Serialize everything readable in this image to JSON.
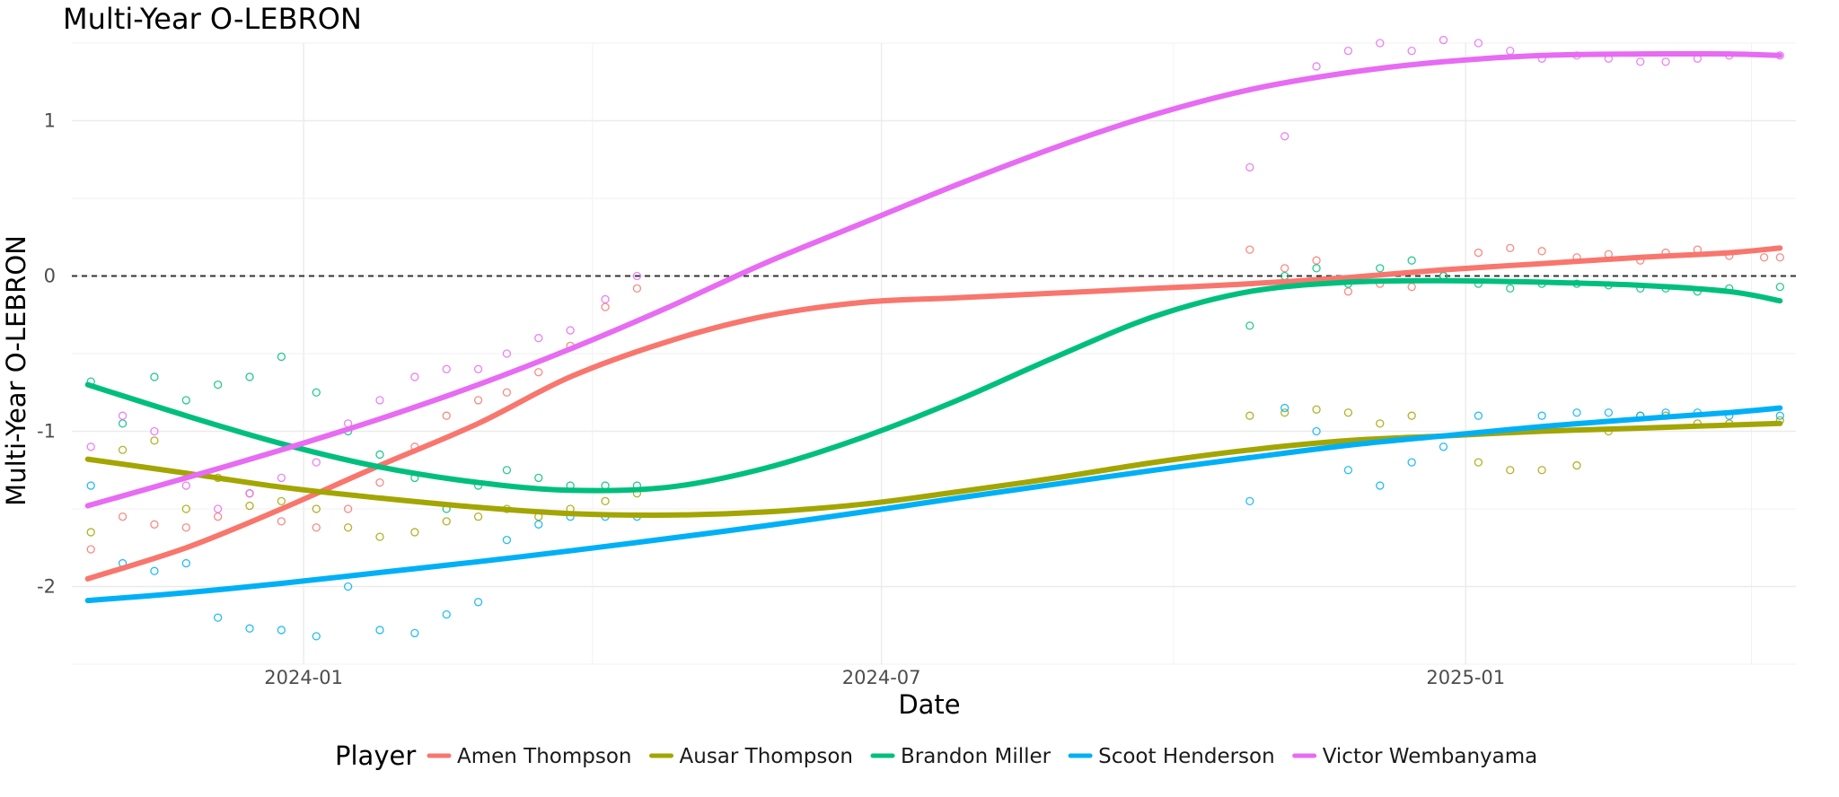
{
  "chart_data": {
    "type": "line",
    "title": "Multi-Year O-LEBRON",
    "xlabel": "Date",
    "ylabel": "Multi-Year O-LEBRON",
    "xlim": [
      "2023-10-20",
      "2025-04-15"
    ],
    "ylim": [
      -2.5,
      1.5
    ],
    "x_ticks": [
      "2024-01-01",
      "2024-07-01",
      "2025-01-01"
    ],
    "x_tick_labels": [
      "2024-01",
      "2024-07",
      "2025-01"
    ],
    "y_ticks": [
      -2,
      -1,
      0,
      1
    ],
    "y_tick_labels": [
      "-2",
      "-1",
      "0",
      "1"
    ],
    "reference_line": {
      "y": 0,
      "style": "dashed"
    },
    "grid": true,
    "legend": {
      "title": "Player",
      "placement": "bottom"
    },
    "series": [
      {
        "name": "Amen Thompson",
        "color": "#F8766D",
        "smooth": [
          [
            "2023-10-25",
            -1.95
          ],
          [
            "2023-11-25",
            -1.75
          ],
          [
            "2023-12-25",
            -1.5
          ],
          [
            "2024-01-25",
            -1.22
          ],
          [
            "2024-02-25",
            -0.95
          ],
          [
            "2024-03-25",
            -0.65
          ],
          [
            "2024-04-25",
            -0.42
          ],
          [
            "2024-05-25",
            -0.26
          ],
          [
            "2024-06-25",
            -0.17
          ],
          [
            "2024-07-25",
            -0.14
          ],
          [
            "2024-08-25",
            -0.11
          ],
          [
            "2024-09-25",
            -0.08
          ],
          [
            "2024-10-25",
            -0.05
          ],
          [
            "2024-11-25",
            -0.01
          ],
          [
            "2024-12-25",
            0.04
          ],
          [
            "2025-01-25",
            0.08
          ],
          [
            "2025-02-25",
            0.12
          ],
          [
            "2025-03-25",
            0.15
          ],
          [
            "2025-04-10",
            0.18
          ]
        ],
        "points": [
          [
            "2023-10-26",
            -1.76
          ],
          [
            "2023-11-05",
            -1.55
          ],
          [
            "2023-11-15",
            -1.6
          ],
          [
            "2023-11-25",
            -1.62
          ],
          [
            "2023-12-05",
            -1.55
          ],
          [
            "2023-12-15",
            -1.4
          ],
          [
            "2023-12-25",
            -1.58
          ],
          [
            "2024-01-05",
            -1.62
          ],
          [
            "2024-01-15",
            -1.5
          ],
          [
            "2024-01-25",
            -1.33
          ],
          [
            "2024-02-05",
            -1.1
          ],
          [
            "2024-02-15",
            -0.9
          ],
          [
            "2024-02-25",
            -0.8
          ],
          [
            "2024-03-05",
            -0.75
          ],
          [
            "2024-03-15",
            -0.62
          ],
          [
            "2024-03-25",
            -0.45
          ],
          [
            "2024-04-05",
            -0.2
          ],
          [
            "2024-04-15",
            -0.08
          ],
          [
            "2024-10-25",
            0.17
          ],
          [
            "2024-11-05",
            0.05
          ],
          [
            "2024-11-15",
            0.1
          ],
          [
            "2024-11-25",
            -0.1
          ],
          [
            "2024-12-05",
            -0.05
          ],
          [
            "2024-12-15",
            -0.07
          ],
          [
            "2024-12-25",
            0.0
          ],
          [
            "2025-01-05",
            0.15
          ],
          [
            "2025-01-15",
            0.18
          ],
          [
            "2025-01-25",
            0.16
          ],
          [
            "2025-02-05",
            0.12
          ],
          [
            "2025-02-15",
            0.14
          ],
          [
            "2025-02-25",
            0.1
          ],
          [
            "2025-03-05",
            0.15
          ],
          [
            "2025-03-15",
            0.17
          ],
          [
            "2025-03-25",
            0.13
          ],
          [
            "2025-04-05",
            0.12
          ],
          [
            "2025-04-10",
            0.12
          ]
        ]
      },
      {
        "name": "Ausar Thompson",
        "color": "#A3A500",
        "smooth": [
          [
            "2023-10-25",
            -1.18
          ],
          [
            "2023-11-25",
            -1.27
          ],
          [
            "2023-12-25",
            -1.36
          ],
          [
            "2024-01-25",
            -1.43
          ],
          [
            "2024-02-25",
            -1.49
          ],
          [
            "2024-03-25",
            -1.53
          ],
          [
            "2024-04-25",
            -1.54
          ],
          [
            "2024-05-25",
            -1.52
          ],
          [
            "2024-06-25",
            -1.47
          ],
          [
            "2024-07-25",
            -1.39
          ],
          [
            "2024-08-25",
            -1.3
          ],
          [
            "2024-09-25",
            -1.2
          ],
          [
            "2024-10-25",
            -1.12
          ],
          [
            "2024-11-25",
            -1.06
          ],
          [
            "2024-12-25",
            -1.03
          ],
          [
            "2025-01-25",
            -1.0
          ],
          [
            "2025-02-25",
            -0.98
          ],
          [
            "2025-03-25",
            -0.96
          ],
          [
            "2025-04-10",
            -0.95
          ]
        ],
        "points": [
          [
            "2023-10-26",
            -1.65
          ],
          [
            "2023-11-05",
            -1.12
          ],
          [
            "2023-11-15",
            -1.06
          ],
          [
            "2023-11-25",
            -1.5
          ],
          [
            "2023-12-05",
            -1.3
          ],
          [
            "2023-12-15",
            -1.48
          ],
          [
            "2023-12-25",
            -1.45
          ],
          [
            "2024-01-05",
            -1.5
          ],
          [
            "2024-01-15",
            -1.62
          ],
          [
            "2024-01-25",
            -1.68
          ],
          [
            "2024-02-05",
            -1.65
          ],
          [
            "2024-02-15",
            -1.58
          ],
          [
            "2024-02-25",
            -1.55
          ],
          [
            "2024-03-05",
            -1.5
          ],
          [
            "2024-03-15",
            -1.55
          ],
          [
            "2024-03-25",
            -1.5
          ],
          [
            "2024-04-05",
            -1.45
          ],
          [
            "2024-04-15",
            -1.4
          ],
          [
            "2024-10-25",
            -0.9
          ],
          [
            "2024-11-05",
            -0.88
          ],
          [
            "2024-11-15",
            -0.86
          ],
          [
            "2024-11-25",
            -0.88
          ],
          [
            "2024-12-05",
            -0.95
          ],
          [
            "2024-12-15",
            -0.9
          ],
          [
            "2025-01-05",
            -1.2
          ],
          [
            "2025-01-15",
            -1.25
          ],
          [
            "2025-01-25",
            -1.25
          ],
          [
            "2025-02-05",
            -1.22
          ],
          [
            "2025-02-15",
            -1.0
          ],
          [
            "2025-02-25",
            -0.9
          ],
          [
            "2025-03-05",
            -0.9
          ],
          [
            "2025-03-15",
            -0.95
          ],
          [
            "2025-03-25",
            -0.95
          ],
          [
            "2025-04-10",
            -0.93
          ]
        ]
      },
      {
        "name": "Brandon Miller",
        "color": "#00BF7D",
        "smooth": [
          [
            "2023-10-25",
            -0.7
          ],
          [
            "2023-11-25",
            -0.9
          ],
          [
            "2023-12-25",
            -1.08
          ],
          [
            "2024-01-25",
            -1.23
          ],
          [
            "2024-02-25",
            -1.33
          ],
          [
            "2024-03-25",
            -1.38
          ],
          [
            "2024-04-25",
            -1.36
          ],
          [
            "2024-05-25",
            -1.24
          ],
          [
            "2024-06-25",
            -1.04
          ],
          [
            "2024-07-25",
            -0.8
          ],
          [
            "2024-08-25",
            -0.52
          ],
          [
            "2024-09-25",
            -0.26
          ],
          [
            "2024-10-25",
            -0.1
          ],
          [
            "2024-11-25",
            -0.04
          ],
          [
            "2024-12-25",
            -0.03
          ],
          [
            "2025-01-25",
            -0.04
          ],
          [
            "2025-02-25",
            -0.06
          ],
          [
            "2025-03-25",
            -0.1
          ],
          [
            "2025-04-10",
            -0.16
          ]
        ],
        "points": [
          [
            "2023-10-26",
            -0.68
          ],
          [
            "2023-11-05",
            -0.95
          ],
          [
            "2023-11-15",
            -0.65
          ],
          [
            "2023-11-25",
            -0.8
          ],
          [
            "2023-12-05",
            -0.7
          ],
          [
            "2023-12-15",
            -0.65
          ],
          [
            "2023-12-25",
            -0.52
          ],
          [
            "2024-01-05",
            -0.75
          ],
          [
            "2024-01-15",
            -1.0
          ],
          [
            "2024-01-25",
            -1.15
          ],
          [
            "2024-02-05",
            -1.3
          ],
          [
            "2024-02-15",
            -1.5
          ],
          [
            "2024-02-25",
            -1.35
          ],
          [
            "2024-03-05",
            -1.25
          ],
          [
            "2024-03-15",
            -1.3
          ],
          [
            "2024-03-25",
            -1.35
          ],
          [
            "2024-04-05",
            -1.35
          ],
          [
            "2024-04-15",
            -1.35
          ],
          [
            "2024-10-25",
            -0.32
          ],
          [
            "2024-11-05",
            0.0
          ],
          [
            "2024-11-15",
            0.05
          ],
          [
            "2024-11-25",
            -0.05
          ],
          [
            "2024-12-05",
            0.05
          ],
          [
            "2024-12-15",
            0.1
          ],
          [
            "2024-12-25",
            0.0
          ],
          [
            "2025-01-05",
            -0.05
          ],
          [
            "2025-01-15",
            -0.08
          ],
          [
            "2025-01-25",
            -0.05
          ],
          [
            "2025-02-05",
            -0.05
          ],
          [
            "2025-02-15",
            -0.06
          ],
          [
            "2025-02-25",
            -0.08
          ],
          [
            "2025-03-05",
            -0.08
          ],
          [
            "2025-03-15",
            -0.1
          ],
          [
            "2025-03-25",
            -0.08
          ],
          [
            "2025-04-10",
            -0.07
          ]
        ]
      },
      {
        "name": "Scoot Henderson",
        "color": "#00B0F6",
        "smooth": [
          [
            "2023-10-25",
            -2.09
          ],
          [
            "2023-11-25",
            -2.04
          ],
          [
            "2023-12-25",
            -1.98
          ],
          [
            "2024-01-25",
            -1.91
          ],
          [
            "2024-02-25",
            -1.84
          ],
          [
            "2024-03-25",
            -1.77
          ],
          [
            "2024-04-25",
            -1.69
          ],
          [
            "2024-05-25",
            -1.61
          ],
          [
            "2024-06-25",
            -1.52
          ],
          [
            "2024-07-25",
            -1.43
          ],
          [
            "2024-08-25",
            -1.34
          ],
          [
            "2024-09-25",
            -1.25
          ],
          [
            "2024-10-25",
            -1.17
          ],
          [
            "2024-11-25",
            -1.09
          ],
          [
            "2024-12-25",
            -1.03
          ],
          [
            "2025-01-25",
            -0.97
          ],
          [
            "2025-02-25",
            -0.92
          ],
          [
            "2025-03-25",
            -0.88
          ],
          [
            "2025-04-10",
            -0.85
          ]
        ],
        "points": [
          [
            "2023-10-26",
            -1.35
          ],
          [
            "2023-11-05",
            -1.85
          ],
          [
            "2023-11-15",
            -1.9
          ],
          [
            "2023-11-25",
            -1.85
          ],
          [
            "2023-12-05",
            -2.2
          ],
          [
            "2023-12-15",
            -2.27
          ],
          [
            "2023-12-25",
            -2.28
          ],
          [
            "2024-01-05",
            -2.32
          ],
          [
            "2024-01-15",
            -2.0
          ],
          [
            "2024-01-25",
            -2.28
          ],
          [
            "2024-02-05",
            -2.3
          ],
          [
            "2024-02-15",
            -2.18
          ],
          [
            "2024-02-25",
            -2.1
          ],
          [
            "2024-03-05",
            -1.7
          ],
          [
            "2024-03-15",
            -1.6
          ],
          [
            "2024-03-25",
            -1.55
          ],
          [
            "2024-04-05",
            -1.55
          ],
          [
            "2024-04-15",
            -1.55
          ],
          [
            "2024-10-25",
            -1.45
          ],
          [
            "2024-11-05",
            -0.85
          ],
          [
            "2024-11-15",
            -1.0
          ],
          [
            "2024-11-25",
            -1.25
          ],
          [
            "2024-12-05",
            -1.35
          ],
          [
            "2024-12-15",
            -1.2
          ],
          [
            "2024-12-25",
            -1.1
          ],
          [
            "2025-01-05",
            -0.9
          ],
          [
            "2025-01-15",
            -1.0
          ],
          [
            "2025-01-25",
            -0.9
          ],
          [
            "2025-02-05",
            -0.88
          ],
          [
            "2025-02-15",
            -0.88
          ],
          [
            "2025-02-25",
            -0.9
          ],
          [
            "2025-03-05",
            -0.88
          ],
          [
            "2025-03-15",
            -0.88
          ],
          [
            "2025-03-25",
            -0.9
          ],
          [
            "2025-04-10",
            -0.9
          ]
        ]
      },
      {
        "name": "Victor Wembanyama",
        "color": "#E76BF3",
        "smooth": [
          [
            "2023-10-25",
            -1.48
          ],
          [
            "2023-11-25",
            -1.3
          ],
          [
            "2023-12-25",
            -1.12
          ],
          [
            "2024-01-25",
            -0.92
          ],
          [
            "2024-02-25",
            -0.7
          ],
          [
            "2024-03-25",
            -0.47
          ],
          [
            "2024-04-25",
            -0.2
          ],
          [
            "2024-05-25",
            0.08
          ],
          [
            "2024-06-25",
            0.34
          ],
          [
            "2024-07-25",
            0.59
          ],
          [
            "2024-08-25",
            0.83
          ],
          [
            "2024-09-25",
            1.04
          ],
          [
            "2024-10-25",
            1.2
          ],
          [
            "2024-11-25",
            1.31
          ],
          [
            "2024-12-25",
            1.38
          ],
          [
            "2025-01-25",
            1.42
          ],
          [
            "2025-02-25",
            1.43
          ],
          [
            "2025-03-25",
            1.43
          ],
          [
            "2025-04-10",
            1.42
          ]
        ],
        "points": [
          [
            "2023-10-26",
            -1.1
          ],
          [
            "2023-11-05",
            -0.9
          ],
          [
            "2023-11-15",
            -1.0
          ],
          [
            "2023-11-25",
            -1.35
          ],
          [
            "2023-12-05",
            -1.5
          ],
          [
            "2023-12-15",
            -1.4
          ],
          [
            "2023-12-25",
            -1.3
          ],
          [
            "2024-01-05",
            -1.2
          ],
          [
            "2024-01-15",
            -0.95
          ],
          [
            "2024-01-25",
            -0.8
          ],
          [
            "2024-02-05",
            -0.65
          ],
          [
            "2024-02-15",
            -0.6
          ],
          [
            "2024-02-25",
            -0.6
          ],
          [
            "2024-03-05",
            -0.5
          ],
          [
            "2024-03-15",
            -0.4
          ],
          [
            "2024-03-25",
            -0.35
          ],
          [
            "2024-04-05",
            -0.15
          ],
          [
            "2024-04-15",
            0.0
          ],
          [
            "2024-10-25",
            0.7
          ],
          [
            "2024-11-05",
            0.9
          ],
          [
            "2024-11-15",
            1.35
          ],
          [
            "2024-11-25",
            1.45
          ],
          [
            "2024-12-05",
            1.5
          ],
          [
            "2024-12-15",
            1.45
          ],
          [
            "2024-12-25",
            1.52
          ],
          [
            "2025-01-05",
            1.5
          ],
          [
            "2025-01-15",
            1.45
          ],
          [
            "2025-01-25",
            1.4
          ],
          [
            "2025-02-05",
            1.42
          ],
          [
            "2025-02-15",
            1.4
          ],
          [
            "2025-02-25",
            1.38
          ],
          [
            "2025-03-05",
            1.38
          ],
          [
            "2025-03-15",
            1.4
          ],
          [
            "2025-03-25",
            1.42
          ],
          [
            "2025-04-10",
            1.42
          ]
        ]
      }
    ]
  }
}
